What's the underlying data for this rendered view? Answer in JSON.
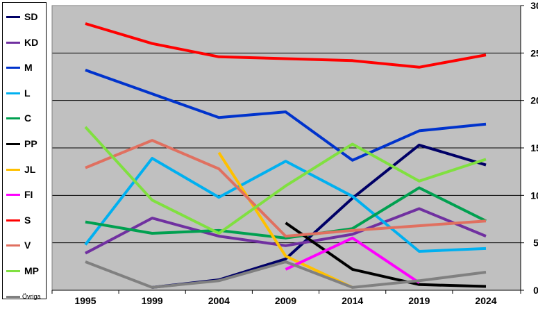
{
  "chart_data": {
    "type": "line",
    "x": [
      "1995",
      "1999",
      "2004",
      "2009",
      "2014",
      "2019",
      "2024"
    ],
    "ylim": [
      0,
      30
    ],
    "yticks": [
      0,
      5,
      10,
      15,
      20,
      25,
      30
    ],
    "grid": true,
    "legend_position": "left",
    "background": "#c0c0c0",
    "series": [
      {
        "name": "SD",
        "color": "#000066",
        "values": [
          null,
          0.3,
          1.1,
          3.3,
          9.7,
          15.3,
          13.2
        ]
      },
      {
        "name": "KD",
        "color": "#7030a0",
        "values": [
          3.9,
          7.6,
          5.7,
          4.7,
          5.9,
          8.6,
          5.7
        ]
      },
      {
        "name": "M",
        "color": "#0033cc",
        "values": [
          23.2,
          20.7,
          18.2,
          18.8,
          13.7,
          16.8,
          17.5
        ]
      },
      {
        "name": "L",
        "color": "#00b0f0",
        "values": [
          4.8,
          13.9,
          9.8,
          13.6,
          9.9,
          4.1,
          4.4
        ]
      },
      {
        "name": "C",
        "color": "#00a050",
        "values": [
          7.2,
          6.0,
          6.3,
          5.5,
          6.5,
          10.8,
          7.3
        ]
      },
      {
        "name": "PP",
        "color": "#000000",
        "values": [
          null,
          null,
          null,
          7.1,
          2.2,
          0.6,
          0.4
        ]
      },
      {
        "name": "JL",
        "color": "#ffc000",
        "values": [
          null,
          null,
          14.5,
          3.6,
          0.3,
          null,
          null
        ]
      },
      {
        "name": "FI",
        "color": "#ff00ff",
        "values": [
          null,
          null,
          null,
          2.2,
          5.5,
          0.8,
          null
        ]
      },
      {
        "name": "S",
        "color": "#ff0000",
        "values": [
          28.1,
          26.0,
          24.6,
          24.4,
          24.2,
          23.5,
          24.8
        ]
      },
      {
        "name": "V",
        "color": "#e07060",
        "values": [
          12.9,
          15.8,
          12.8,
          5.7,
          6.3,
          6.8,
          7.3
        ]
      },
      {
        "name": "MP",
        "color": "#80e040",
        "values": [
          17.2,
          9.5,
          6.0,
          11.0,
          15.4,
          11.5,
          13.8
        ]
      },
      {
        "name": "Övriga",
        "color": "#808080",
        "values": [
          3.0,
          0.3,
          1.0,
          3.0,
          0.3,
          1.0,
          1.9
        ]
      }
    ]
  }
}
